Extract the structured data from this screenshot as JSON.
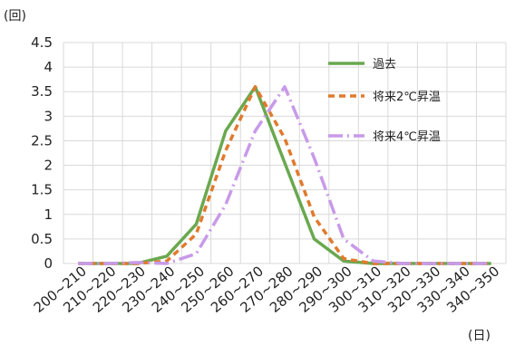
{
  "chart_data": {
    "type": "line",
    "y_unit_label": "(回)",
    "x_unit_label": "(日)",
    "categories": [
      "200~210",
      "210~220",
      "220~230",
      "230~240",
      "240~250",
      "250~260",
      "260~270",
      "270~280",
      "280~290",
      "290~300",
      "300~310",
      "310~320",
      "320~330",
      "330~340",
      "340~350"
    ],
    "yticks": [
      "0",
      "0.5",
      "1",
      "1.5",
      "2",
      "2.5",
      "3",
      "3.5",
      "4",
      "4.5"
    ],
    "ylim": [
      0,
      4.5
    ],
    "grid": true,
    "legend_position": "top-right",
    "series": [
      {
        "name": "過去",
        "color": "#6aa84f",
        "style": "solid",
        "values": [
          0,
          0,
          0,
          0.15,
          0.8,
          2.7,
          3.6,
          2.05,
          0.5,
          0.05,
          0,
          0,
          0,
          0,
          0
        ]
      },
      {
        "name": "将来2℃昇温",
        "color": "#e07a2e",
        "style": "dashed",
        "values": [
          0,
          0,
          0,
          0.05,
          0.6,
          2.3,
          3.6,
          2.55,
          0.95,
          0.1,
          0,
          0,
          0,
          0,
          0
        ]
      },
      {
        "name": "将来4℃昇温",
        "color": "#c89ae8",
        "style": "dashdot",
        "values": [
          0,
          0,
          0.02,
          0,
          0.2,
          1.2,
          2.7,
          3.6,
          2.15,
          0.5,
          0.05,
          0,
          0,
          0,
          0
        ]
      }
    ]
  }
}
